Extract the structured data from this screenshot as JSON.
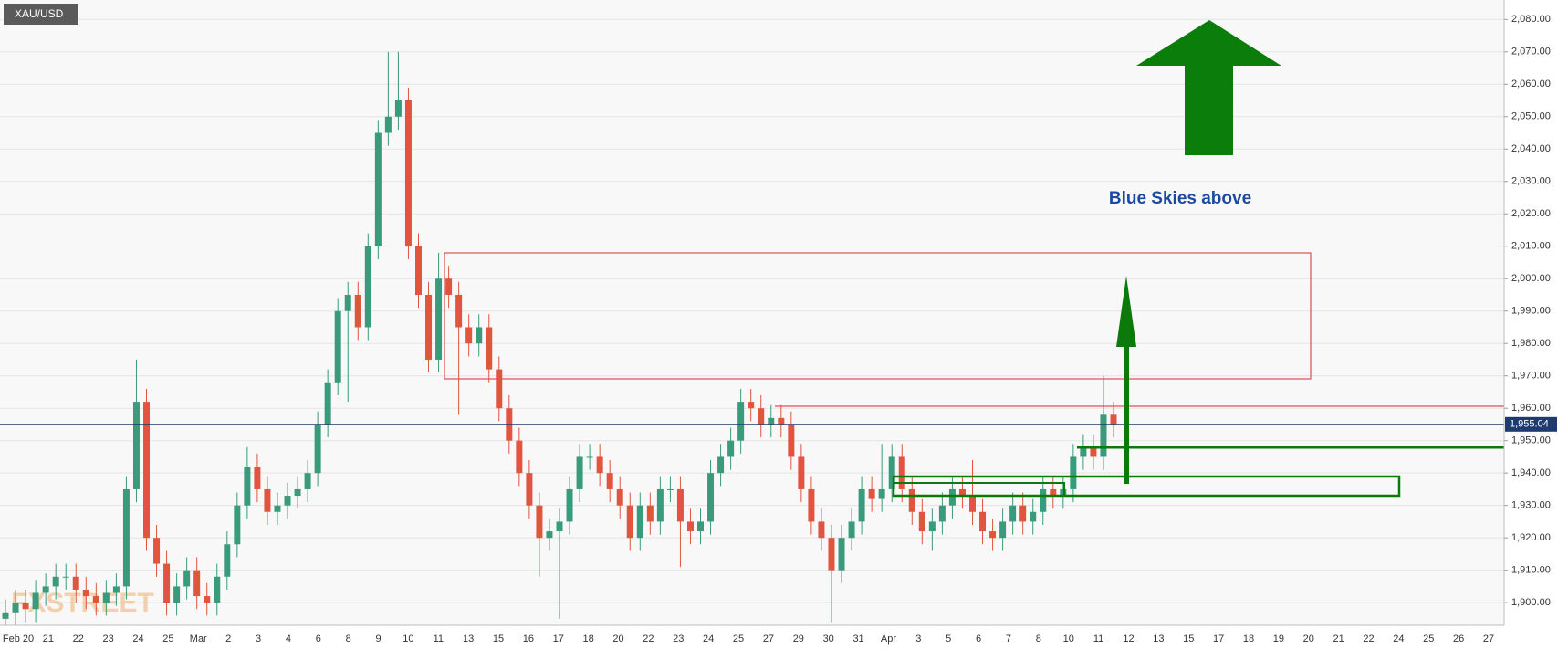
{
  "chart_data": {
    "type": "candlestick",
    "title": "XAU/USD",
    "annotation": "Blue Skies above",
    "watermark": "FXSTREET",
    "up_color": "#3a9a7c",
    "down_color": "#e0553f",
    "grid": true,
    "ylim": [
      1893,
      2086
    ],
    "yticks": [
      {
        "value": 1900,
        "label": "1,900.00"
      },
      {
        "value": 1910,
        "label": "1,910.00"
      },
      {
        "value": 1920,
        "label": "1,920.00"
      },
      {
        "value": 1930,
        "label": "1,930.00"
      },
      {
        "value": 1940,
        "label": "1,940.00"
      },
      {
        "value": 1950,
        "label": "1,950.00"
      },
      {
        "value": 1960,
        "label": "1,960.00"
      },
      {
        "value": 1970,
        "label": "1,970.00"
      },
      {
        "value": 1980,
        "label": "1,980.00"
      },
      {
        "value": 1990,
        "label": "1,990.00"
      },
      {
        "value": 2000,
        "label": "2,000.00"
      },
      {
        "value": 2010,
        "label": "2,010.00"
      },
      {
        "value": 2020,
        "label": "2,020.00"
      },
      {
        "value": 2030,
        "label": "2,030.00"
      },
      {
        "value": 2040,
        "label": "2,040.00"
      },
      {
        "value": 2050,
        "label": "2,050.00"
      },
      {
        "value": 2060,
        "label": "2,060.00"
      },
      {
        "value": 2070,
        "label": "2,070.00"
      },
      {
        "value": 2080,
        "label": "2,080.00"
      }
    ],
    "last_price": {
      "value": 1955.04,
      "label": "1,955.04"
    },
    "categories": [
      "Feb 20",
      "21",
      "22",
      "23",
      "24",
      "25",
      "Mar",
      "2",
      "3",
      "4",
      "6",
      "8",
      "9",
      "10",
      "11",
      "13",
      "15",
      "16",
      "17",
      "18",
      "20",
      "22",
      "23",
      "24",
      "25",
      "27",
      "29",
      "30",
      "31",
      "Apr",
      "3",
      "5",
      "6",
      "7",
      "8",
      "10",
      "11",
      "12",
      "13",
      "15",
      "17",
      "18",
      "19",
      "20",
      "21",
      "22",
      "24",
      "25",
      "26",
      "27"
    ],
    "open": [
      1895,
      1897,
      1900,
      1898,
      1903,
      1905,
      1908,
      1908,
      1904,
      1902,
      1900,
      1903,
      1905,
      1935,
      1962,
      1920,
      1912,
      1900,
      1905,
      1910,
      1902,
      1900,
      1908,
      1918,
      1930,
      1942,
      1935,
      1928,
      1930,
      1933,
      1935,
      1940,
      1955,
      1968,
      1990,
      1995,
      1985,
      2010,
      2045,
      2050,
      2055,
      2010,
      1995,
      1975,
      2000,
      1995,
      1985,
      1980,
      1985,
      1972,
      1960,
      1950,
      1940,
      1930,
      1920,
      1922,
      1925,
      1935,
      1945,
      1945,
      1940,
      1935,
      1930,
      1920,
      1930,
      1925,
      1935,
      1935,
      1925,
      1922,
      1925,
      1940,
      1945,
      1950,
      1962,
      1960,
      1955,
      1957,
      1955,
      1945,
      1935,
      1925,
      1920,
      1910,
      1920,
      1925,
      1935,
      1932,
      1935,
      1945,
      1935,
      1928,
      1922,
      1925,
      1930,
      1935,
      1933,
      1928,
      1922,
      1920,
      1925,
      1930,
      1925,
      1928,
      1935,
      1933,
      1935,
      1945,
      1948,
      1945,
      1958
    ],
    "high": [
      1901,
      1904,
      1904,
      1907,
      1909,
      1912,
      1912,
      1912,
      1908,
      1906,
      1907,
      1909,
      1939,
      1975,
      1966,
      1924,
      1916,
      1909,
      1914,
      1914,
      1906,
      1912,
      1922,
      1934,
      1948,
      1946,
      1939,
      1934,
      1937,
      1939,
      1944,
      1959,
      1972,
      1994,
      1999,
      1999,
      2014,
      2049,
      2070,
      2070,
      2059,
      2014,
      1999,
      2008,
      2004,
      1999,
      1989,
      1989,
      1989,
      1976,
      1964,
      1954,
      1944,
      1934,
      1926,
      1929,
      1939,
      1949,
      1949,
      1949,
      1944,
      1939,
      1934,
      1934,
      1934,
      1939,
      1939,
      1939,
      1929,
      1929,
      1944,
      1949,
      1954,
      1966,
      1966,
      1964,
      1961,
      1961,
      1959,
      1949,
      1939,
      1929,
      1924,
      1924,
      1929,
      1939,
      1939,
      1949,
      1949,
      1949,
      1939,
      1932,
      1929,
      1934,
      1939,
      1939,
      1944,
      1932,
      1926,
      1929,
      1934,
      1934,
      1932,
      1939,
      1939,
      1939,
      1949,
      1952,
      1952,
      1970,
      1962
    ],
    "low": [
      1893,
      1893,
      1894,
      1894,
      1899,
      1901,
      1904,
      1900,
      1898,
      1896,
      1896,
      1899,
      1901,
      1931,
      1916,
      1908,
      1896,
      1896,
      1901,
      1898,
      1896,
      1896,
      1904,
      1914,
      1926,
      1931,
      1924,
      1924,
      1926,
      1929,
      1931,
      1936,
      1951,
      1964,
      1962,
      1981,
      1981,
      2006,
      2041,
      2046,
      2006,
      1991,
      1971,
      1971,
      1991,
      1958,
      1976,
      1976,
      1968,
      1956,
      1946,
      1936,
      1926,
      1908,
      1916,
      1895,
      1921,
      1931,
      1941,
      1936,
      1931,
      1926,
      1916,
      1916,
      1921,
      1921,
      1931,
      1911,
      1918,
      1918,
      1921,
      1936,
      1941,
      1946,
      1956,
      1951,
      1951,
      1951,
      1941,
      1931,
      1921,
      1916,
      1894,
      1906,
      1916,
      1921,
      1928,
      1928,
      1931,
      1931,
      1924,
      1918,
      1916,
      1921,
      1926,
      1929,
      1924,
      1918,
      1916,
      1916,
      1921,
      1921,
      1921,
      1924,
      1929,
      1929,
      1931,
      1941,
      1941,
      1941,
      1951
    ],
    "close": [
      1897,
      1900,
      1898,
      1903,
      1905,
      1908,
      1908,
      1904,
      1902,
      1900,
      1903,
      1905,
      1935,
      1962,
      1920,
      1912,
      1900,
      1905,
      1910,
      1902,
      1900,
      1908,
      1918,
      1930,
      1942,
      1935,
      1928,
      1930,
      1933,
      1935,
      1940,
      1955,
      1968,
      1990,
      1995,
      1985,
      2010,
      2045,
      2050,
      2055,
      2010,
      1995,
      1975,
      2000,
      1995,
      1985,
      1980,
      1985,
      1972,
      1960,
      1950,
      1940,
      1930,
      1920,
      1922,
      1925,
      1935,
      1945,
      1945,
      1940,
      1935,
      1930,
      1920,
      1930,
      1925,
      1935,
      1935,
      1925,
      1922,
      1925,
      1940,
      1945,
      1950,
      1962,
      1960,
      1955,
      1957,
      1955,
      1945,
      1935,
      1925,
      1920,
      1910,
      1920,
      1925,
      1935,
      1932,
      1935,
      1945,
      1935,
      1928,
      1922,
      1925,
      1930,
      1935,
      1933,
      1928,
      1922,
      1920,
      1925,
      1930,
      1925,
      1928,
      1935,
      1933,
      1935,
      1945,
      1948,
      1945,
      1958,
      1955
    ]
  }
}
